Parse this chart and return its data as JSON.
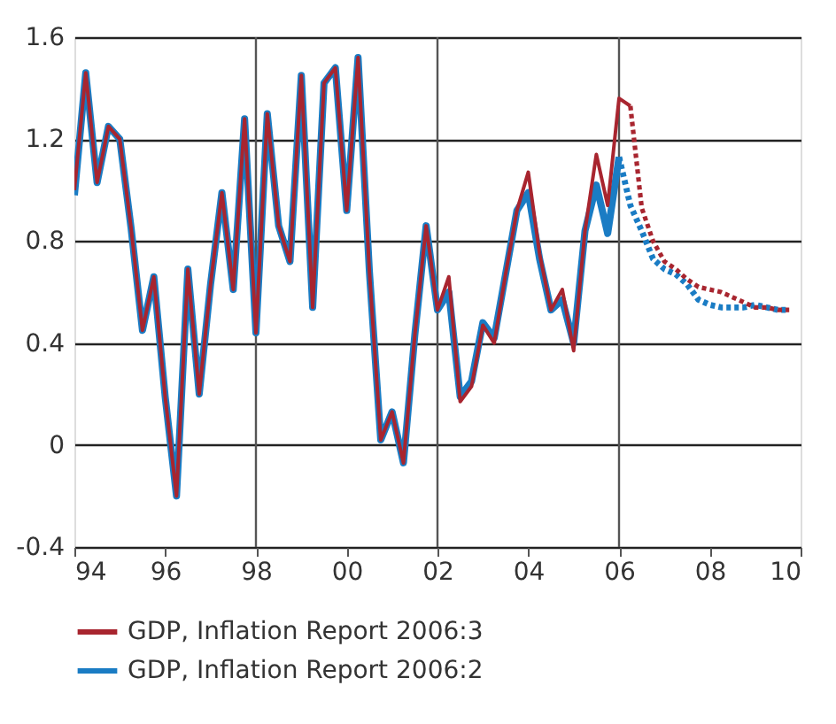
{
  "chart_data": {
    "type": "line",
    "xlim": [
      1994,
      2010
    ],
    "ylim": [
      -0.4,
      1.6
    ],
    "xticks": [
      {
        "value": 1994,
        "label": "94"
      },
      {
        "value": 1996,
        "label": "96"
      },
      {
        "value": 1998,
        "label": "98"
      },
      {
        "value": 2000,
        "label": "00"
      },
      {
        "value": 2002,
        "label": "02"
      },
      {
        "value": 2004,
        "label": "04"
      },
      {
        "value": 2006,
        "label": "06"
      },
      {
        "value": 2008,
        "label": "08"
      },
      {
        "value": 2010,
        "label": "10"
      }
    ],
    "yticks": [
      -0.4,
      0,
      0.4,
      0.8,
      1.2,
      1.6
    ],
    "grid": "y",
    "legend": "bottom",
    "line_style": "solid",
    "marker": "none",
    "ref_lines": [
      {
        "axis": "x",
        "value": 1998,
        "color": "#555555"
      },
      {
        "axis": "x",
        "value": 2002,
        "color": "#555555"
      },
      {
        "axis": "x",
        "value": 2006,
        "color": "#555555"
      }
    ],
    "series": [
      {
        "name": "GDP, Inflation Report 2006:3",
        "color": "#a8252f",
        "x": [
          1994,
          1994.25,
          1994.5,
          1994.75,
          1995,
          1995.25,
          1995.5,
          1995.75,
          1996,
          1996.25,
          1996.5,
          1996.75,
          1997,
          1997.25,
          1997.5,
          1997.75,
          1998,
          1998.25,
          1998.5,
          1998.75,
          1999,
          1999.25,
          1999.5,
          1999.75,
          2000,
          2000.25,
          2000.5,
          2000.75,
          2001,
          2001.25,
          2001.5,
          2001.75,
          2002,
          2002.25,
          2002.5,
          2002.75,
          2003,
          2003.25,
          2003.5,
          2003.75,
          2004,
          2004.25,
          2004.5,
          2004.75,
          2005,
          2005.25,
          2005.5,
          2005.75,
          2006,
          2006.25
        ],
        "values": [
          1.0,
          1.46,
          1.03,
          1.25,
          1.2,
          0.85,
          0.45,
          0.66,
          0.19,
          -0.2,
          0.69,
          0.2,
          0.63,
          0.99,
          0.61,
          1.28,
          0.44,
          1.3,
          0.86,
          0.72,
          1.45,
          0.54,
          1.42,
          1.48,
          0.92,
          1.52,
          0.68,
          0.02,
          0.13,
          -0.07,
          0.43,
          0.86,
          0.53,
          0.66,
          0.17,
          0.23,
          0.47,
          0.4,
          0.67,
          0.92,
          1.07,
          0.75,
          0.53,
          0.61,
          0.37,
          0.84,
          1.14,
          0.94,
          1.36,
          1.33
        ]
      },
      {
        "name": "GDP, Inflation Report 2006:2",
        "color": "#1a7cc4",
        "x": [
          1994,
          1994.25,
          1994.5,
          1994.75,
          1995,
          1995.25,
          1995.5,
          1995.75,
          1996,
          1996.25,
          1996.5,
          1996.75,
          1997,
          1997.25,
          1997.5,
          1997.75,
          1998,
          1998.25,
          1998.5,
          1998.75,
          1999,
          1999.25,
          1999.5,
          1999.75,
          2000,
          2000.25,
          2000.5,
          2000.75,
          2001,
          2001.25,
          2001.5,
          2001.75,
          2002,
          2002.25,
          2002.5,
          2002.75,
          2003,
          2003.25,
          2003.5,
          2003.75,
          2004,
          2004.25,
          2004.5,
          2004.75,
          2005,
          2005.25,
          2005.5,
          2005.75,
          2006
        ],
        "values": [
          0.98,
          1.46,
          1.03,
          1.25,
          1.2,
          0.85,
          0.45,
          0.66,
          0.19,
          -0.2,
          0.69,
          0.2,
          0.63,
          0.99,
          0.61,
          1.28,
          0.44,
          1.3,
          0.86,
          0.72,
          1.45,
          0.54,
          1.42,
          1.48,
          0.92,
          1.52,
          0.68,
          0.02,
          0.13,
          -0.07,
          0.43,
          0.86,
          0.53,
          0.6,
          0.19,
          0.25,
          0.48,
          0.42,
          0.67,
          0.92,
          0.99,
          0.73,
          0.53,
          0.57,
          0.4,
          0.84,
          1.02,
          0.83,
          1.13
        ]
      },
      {
        "color": "#1a7cc4",
        "line_style": "dotted",
        "x": [
          2006,
          2006.25,
          2006.5,
          2006.75,
          2007,
          2007.25,
          2007.5,
          2007.75,
          2008,
          2008.25,
          2008.5,
          2008.75,
          2009,
          2009.25,
          2009.5,
          2009.75
        ],
        "values": [
          1.13,
          0.94,
          0.84,
          0.73,
          0.69,
          0.67,
          0.63,
          0.57,
          0.55,
          0.54,
          0.54,
          0.54,
          0.55,
          0.54,
          0.53,
          0.53
        ]
      },
      {
        "color": "#a8252f",
        "line_style": "dotted",
        "x": [
          2006.25,
          2006.5,
          2006.75,
          2007,
          2007.25,
          2007.5,
          2007.75,
          2008,
          2008.25,
          2008.5,
          2008.75,
          2009,
          2009.25,
          2009.5,
          2009.75
        ],
        "values": [
          1.33,
          0.93,
          0.8,
          0.72,
          0.69,
          0.65,
          0.62,
          0.61,
          0.6,
          0.58,
          0.56,
          0.54,
          0.54,
          0.53,
          0.53
        ]
      }
    ]
  }
}
